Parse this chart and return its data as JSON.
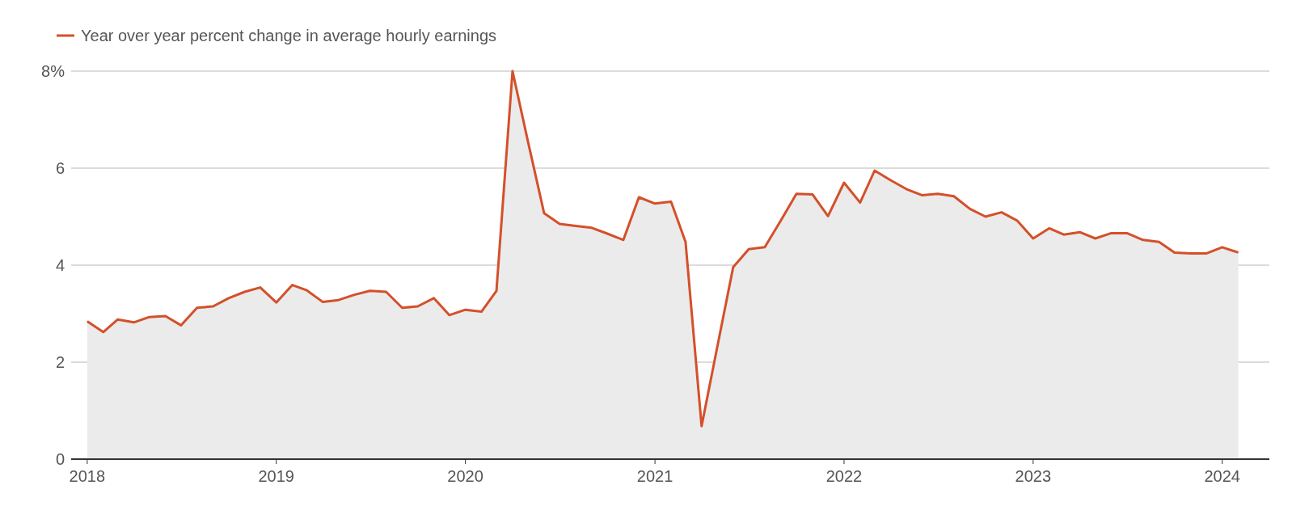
{
  "chart_data": {
    "type": "area",
    "x": [
      "2018-01",
      "2018-02",
      "2018-03",
      "2018-04",
      "2018-05",
      "2018-06",
      "2018-07",
      "2018-08",
      "2018-09",
      "2018-10",
      "2018-11",
      "2018-12",
      "2019-01",
      "2019-02",
      "2019-03",
      "2019-04",
      "2019-05",
      "2019-06",
      "2019-07",
      "2019-08",
      "2019-09",
      "2019-10",
      "2019-11",
      "2019-12",
      "2020-01",
      "2020-02",
      "2020-03",
      "2020-04",
      "2020-05",
      "2020-06",
      "2020-07",
      "2020-08",
      "2020-09",
      "2020-10",
      "2020-11",
      "2020-12",
      "2021-01",
      "2021-02",
      "2021-03",
      "2021-04",
      "2021-05",
      "2021-06",
      "2021-07",
      "2021-08",
      "2021-09",
      "2021-10",
      "2021-11",
      "2021-12",
      "2022-01",
      "2022-02",
      "2022-03",
      "2022-04",
      "2022-05",
      "2022-06",
      "2022-07",
      "2022-08",
      "2022-09",
      "2022-10",
      "2022-11",
      "2022-12",
      "2023-01",
      "2023-02",
      "2023-03",
      "2023-04",
      "2023-05",
      "2023-06",
      "2023-07",
      "2023-08",
      "2023-09",
      "2023-10",
      "2023-11",
      "2023-12",
      "2024-01",
      "2024-02"
    ],
    "series": [
      {
        "name": "Year over year percent change in average hourly earnings",
        "color": "#d4502a",
        "values": [
          2.84,
          2.62,
          2.88,
          2.82,
          2.93,
          2.95,
          2.76,
          3.12,
          3.15,
          3.32,
          3.45,
          3.54,
          3.23,
          3.59,
          3.48,
          3.24,
          3.28,
          3.39,
          3.47,
          3.45,
          3.12,
          3.15,
          3.32,
          2.97,
          3.08,
          3.04,
          3.47,
          8.0,
          6.54,
          5.07,
          4.85,
          4.81,
          4.77,
          4.65,
          4.52,
          5.4,
          5.27,
          5.31,
          4.48,
          0.68,
          2.3,
          3.96,
          4.33,
          4.37,
          4.92,
          5.47,
          5.46,
          5.01,
          5.7,
          5.29,
          5.95,
          5.75,
          5.57,
          5.44,
          5.47,
          5.42,
          5.16,
          5.0,
          5.09,
          4.92,
          4.55,
          4.76,
          4.63,
          4.68,
          4.55,
          4.66,
          4.66,
          4.52,
          4.48,
          4.26,
          4.24,
          4.24,
          4.37,
          4.26
        ]
      }
    ],
    "xlim": [
      "2017-12",
      "2024-04"
    ],
    "xticks": [
      "2018",
      "2019",
      "2020",
      "2021",
      "2022",
      "2023",
      "2024"
    ],
    "ylim": [
      0,
      8
    ],
    "yticks": [
      0,
      2,
      4,
      6,
      {
        "value": 8,
        "label": "8%"
      }
    ],
    "grid": "y",
    "legend": "top left"
  }
}
